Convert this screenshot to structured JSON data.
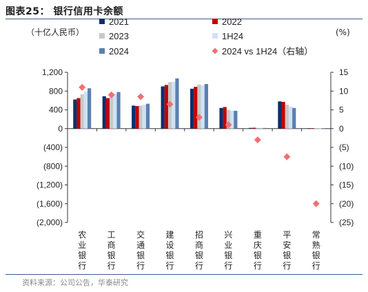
{
  "header": {
    "title": "图表25：  银行信用卡余额",
    "source": "资料来源：公司公告，华泰研究"
  },
  "chart_data": {
    "type": "bar",
    "left_unit": "（十亿人民币）",
    "right_unit": "(%)",
    "categories": [
      "农业银行",
      "工商银行",
      "交通银行",
      "建设银行",
      "招商银行",
      "兴业银行",
      "重庆银行",
      "平安银行",
      "常熟银行"
    ],
    "series": [
      {
        "name": "2021",
        "color": "#0d2f6e",
        "values": [
          620,
          690,
          490,
          900,
          850,
          440,
          15,
          580,
          8
        ]
      },
      {
        "name": "2022",
        "color": "#c00000",
        "values": [
          650,
          650,
          480,
          930,
          890,
          460,
          18,
          570,
          8
        ]
      },
      {
        "name": "2023",
        "color": "#c8c8c8",
        "values": [
          730,
          680,
          490,
          990,
          940,
          400,
          15,
          510,
          6
        ]
      },
      {
        "name": "1H24",
        "color": "#cfe2f5",
        "values": [
          790,
          740,
          510,
          1000,
          920,
          380,
          13,
          470,
          5
        ]
      },
      {
        "name": "2024",
        "color": "#5b80b0",
        "values": [
          860,
          780,
          530,
          1070,
          950,
          380,
          13,
          440,
          5
        ]
      }
    ],
    "scatter": {
      "name": "2024 vs 1H24（右轴）",
      "color": "#f07070",
      "values": [
        11,
        9,
        8.5,
        6.5,
        3,
        1,
        -3,
        -7.5,
        -20
      ]
    },
    "ylim": [
      -2000,
      1200
    ],
    "yticks": [
      1200,
      800,
      400,
      0,
      -400,
      -800,
      -1200,
      -1600,
      -2000
    ],
    "ytick_labels": [
      "1,200",
      "800",
      "400",
      "0",
      "(400)",
      "(800)",
      "(1,200)",
      "(1,600)",
      "(2,000)"
    ],
    "y2lim": [
      -25,
      15
    ],
    "y2ticks": [
      15,
      10,
      5,
      0,
      -5,
      -10,
      -15,
      -20,
      -25
    ],
    "y2tick_labels": [
      "15",
      "10",
      "5",
      "0",
      "(5)",
      "(10)",
      "(15)",
      "(20)",
      "(25)"
    ],
    "legend": [
      {
        "label": "2021",
        "type": "square",
        "color": "#0d2f6e"
      },
      {
        "label": "2022",
        "type": "square",
        "color": "#c00000"
      },
      {
        "label": "2023",
        "type": "square",
        "color": "#c8c8c8"
      },
      {
        "label": "1H24",
        "type": "square",
        "color": "#cfe2f5"
      },
      {
        "label": "2024",
        "type": "square",
        "color": "#5b80b0"
      },
      {
        "label": "2024 vs 1H24（右轴）",
        "type": "diamond",
        "color": "#f07070"
      }
    ]
  }
}
